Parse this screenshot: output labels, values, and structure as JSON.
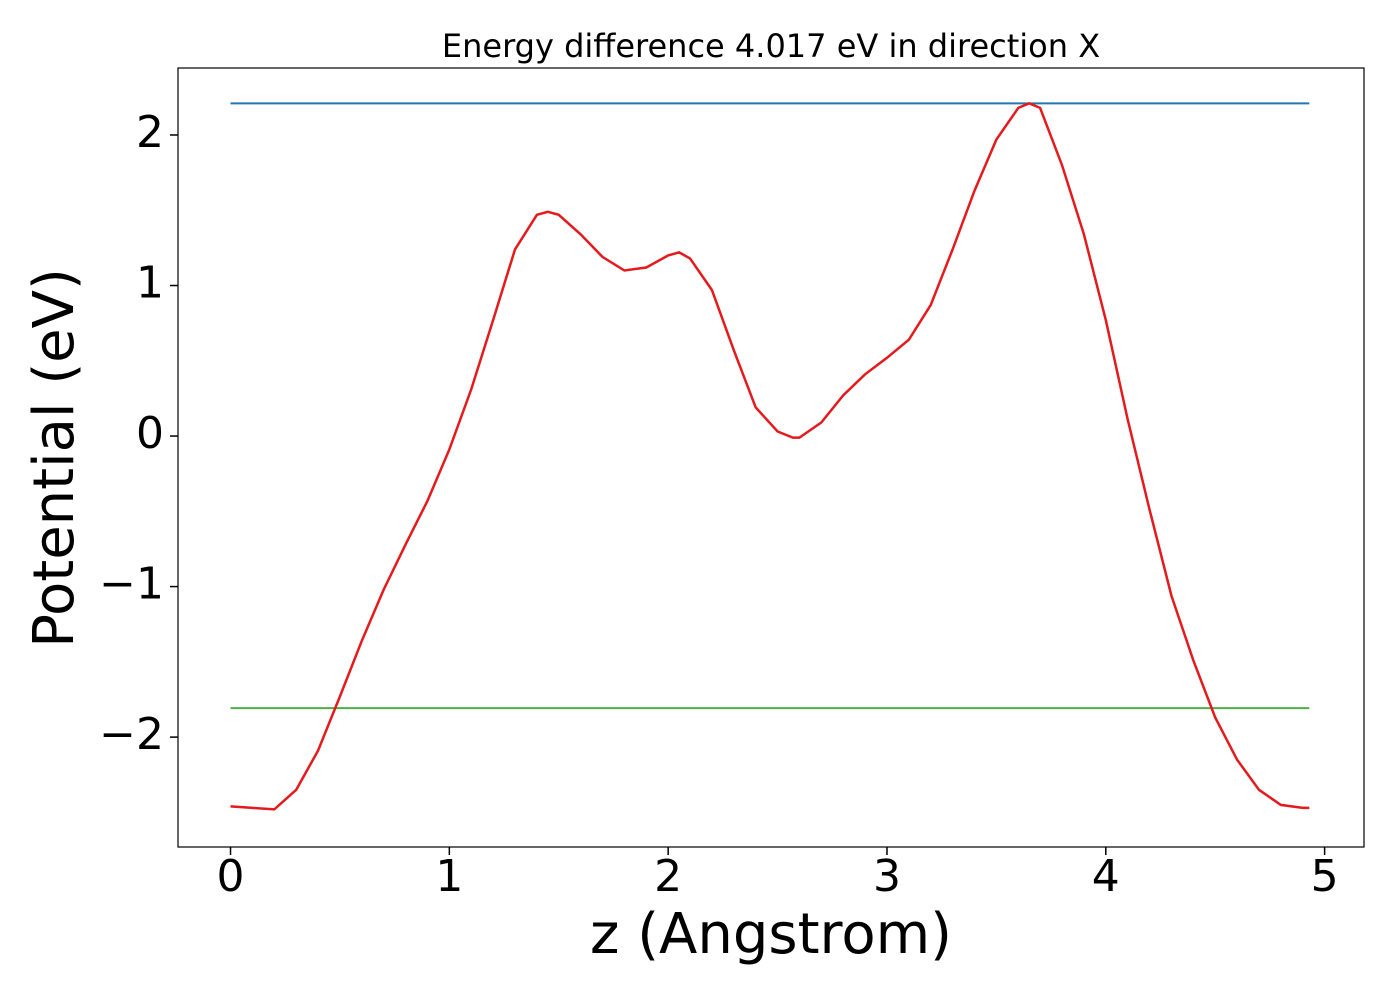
{
  "chart_data": {
    "type": "line",
    "title": "Energy difference 4.017 eV in direction X",
    "x_label": "z (Angstrom)",
    "y_label": "Potential (eV)",
    "xlim": [
      -0.24,
      5.18
    ],
    "ylim": [
      -2.73,
      2.445
    ],
    "xticks": [
      0,
      1,
      2,
      3,
      4,
      5
    ],
    "yticks": [
      {
        "value": -2,
        "label": "−2"
      },
      {
        "value": -1,
        "label": "−1"
      },
      0,
      1,
      2
    ],
    "series": [
      {
        "color": "#1f77b4",
        "x": [
          0,
          4.93
        ],
        "values": [
          2.21,
          2.21
        ]
      },
      {
        "color": "#4daf4a",
        "x": [
          0,
          4.93
        ],
        "values": [
          -1.807,
          -1.807
        ]
      },
      {
        "color": "#e41a1c",
        "x": [
          0,
          0.1,
          0.2,
          0.3,
          0.4,
          0.5,
          0.6,
          0.7,
          0.8,
          0.9,
          1.0,
          1.1,
          1.2,
          1.3,
          1.4,
          1.45,
          1.5,
          1.6,
          1.7,
          1.8,
          1.9,
          2.0,
          2.05,
          2.1,
          2.2,
          2.3,
          2.4,
          2.5,
          2.57,
          2.6,
          2.7,
          2.8,
          2.9,
          3.0,
          3.1,
          3.2,
          3.3,
          3.4,
          3.5,
          3.6,
          3.65,
          3.7,
          3.8,
          3.9,
          4.0,
          4.1,
          4.2,
          4.3,
          4.4,
          4.5,
          4.6,
          4.7,
          4.8,
          4.9,
          4.93
        ],
        "values": [
          -2.46,
          -2.47,
          -2.48,
          -2.35,
          -2.09,
          -1.73,
          -1.36,
          -1.02,
          -0.72,
          -0.43,
          -0.09,
          0.31,
          0.77,
          1.24,
          1.47,
          1.49,
          1.47,
          1.34,
          1.19,
          1.1,
          1.12,
          1.2,
          1.22,
          1.18,
          0.97,
          0.57,
          0.19,
          0.03,
          -0.01,
          -0.01,
          0.09,
          0.27,
          0.41,
          0.52,
          0.64,
          0.87,
          1.24,
          1.63,
          1.97,
          2.18,
          2.21,
          2.18,
          1.8,
          1.34,
          0.77,
          0.11,
          -0.49,
          -1.06,
          -1.49,
          -1.87,
          -2.15,
          -2.35,
          -2.45,
          -2.47,
          -2.47
        ]
      }
    ]
  }
}
